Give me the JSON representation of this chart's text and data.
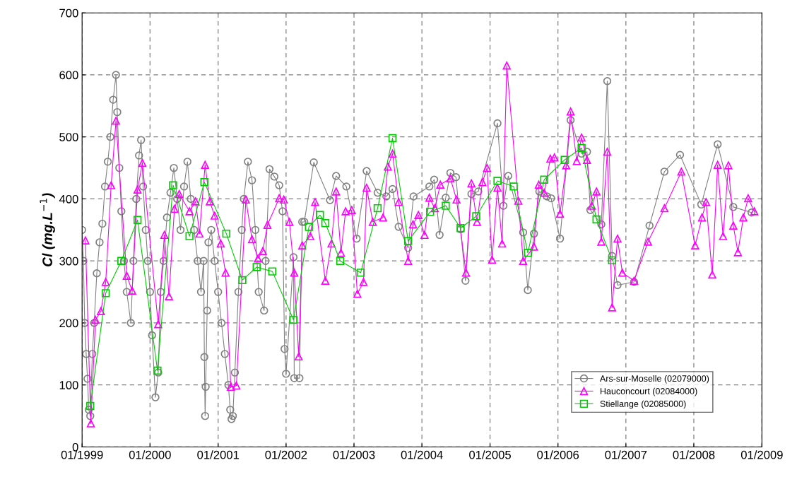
{
  "chart_data": {
    "type": "line",
    "ylabel": "Cl (mg.L$^{−1}$)",
    "xlim": [
      "1999-01-01",
      "2009-01-01"
    ],
    "ylim": [
      0,
      700
    ],
    "xticks": [
      {
        "value": "1999-01-01",
        "label": "01/1999"
      },
      {
        "value": "2000-01-01",
        "label": "01/2000"
      },
      {
        "value": "2001-01-01",
        "label": "01/2001"
      },
      {
        "value": "2002-01-01",
        "label": "01/2002"
      },
      {
        "value": "2003-01-01",
        "label": "01/2003"
      },
      {
        "value": "2004-01-01",
        "label": "01/2004"
      },
      {
        "value": "2005-01-01",
        "label": "01/2005"
      },
      {
        "value": "2006-01-01",
        "label": "01/2006"
      },
      {
        "value": "2007-01-01",
        "label": "01/2007"
      },
      {
        "value": "2008-01-01",
        "label": "01/2008"
      },
      {
        "value": "2009-01-01",
        "label": "01/2009"
      }
    ],
    "yticks": [
      0,
      100,
      200,
      300,
      400,
      500,
      600,
      700
    ],
    "grid": true,
    "legend": "bottom right",
    "line_style": "solid",
    "series": [
      {
        "name": "Ars-sur-Moselle (02079000)",
        "color": "#808080",
        "marker": "circle",
        "x": [
          "1999-01-01",
          "1999-01-08",
          "1999-01-15",
          "1999-01-23",
          "1999-01-30",
          "1999-02-06",
          "1999-02-14",
          "1999-02-25",
          "1999-03-07",
          "1999-03-21",
          "1999-04-05",
          "1999-04-20",
          "1999-05-04",
          "1999-05-19",
          "1999-06-02",
          "1999-06-17",
          "1999-07-02",
          "1999-07-09",
          "1999-07-20",
          "1999-07-31",
          "1999-08-14",
          "1999-08-29",
          "1999-09-20",
          "1999-10-04",
          "1999-10-19",
          "1999-11-03",
          "1999-11-14",
          "1999-11-25",
          "1999-12-09",
          "1999-12-20",
          "2000-01-01",
          "2000-01-12",
          "2000-01-30",
          "2000-02-14",
          "2000-02-28",
          "2000-03-14",
          "2000-04-01",
          "2000-04-20",
          "2000-05-08",
          "2000-05-26",
          "2000-06-13",
          "2000-07-02",
          "2000-07-20",
          "2000-08-07",
          "2000-08-25",
          "2000-09-13",
          "2000-10-01",
          "2000-10-15",
          "2000-10-19",
          "2000-10-23",
          "2000-10-26",
          "2000-11-03",
          "2000-11-10",
          "2000-11-25",
          "2000-12-13",
          "2001-01-01",
          "2001-01-19",
          "2001-02-06",
          "2001-02-25",
          "2001-03-07",
          "2001-03-14",
          "2001-03-21",
          "2001-04-01",
          "2001-04-20",
          "2001-05-08",
          "2001-05-19",
          "2001-06-10",
          "2001-07-02",
          "2001-07-20",
          "2001-08-07",
          "2001-09-05",
          "2001-09-13",
          "2001-10-04",
          "2001-10-30",
          "2001-11-25",
          "2001-12-13",
          "2001-12-24",
          "2002-01-01",
          "2002-02-10",
          "2002-02-14",
          "2002-03-14",
          "2002-03-29",
          "2002-04-09",
          "2002-05-30",
          "2002-08-25",
          "2002-09-27",
          "2002-11-21",
          "2003-01-15",
          "2003-03-10",
          "2003-05-08",
          "2003-06-24",
          "2003-07-27",
          "2003-08-29",
          "2003-10-19",
          "2003-11-17",
          "2004-02-10",
          "2004-03-07",
          "2004-04-05",
          "2004-05-08",
          "2004-06-02",
          "2004-07-02",
          "2004-07-27",
          "2004-08-22",
          "2004-09-23",
          "2004-10-30",
          "2005-02-10",
          "2005-03-14",
          "2005-04-09",
          "2005-06-28",
          "2005-07-23",
          "2005-08-25",
          "2005-09-23",
          "2005-11-03",
          "2005-11-25",
          "2006-01-12",
          "2006-03-10",
          "2006-05-08",
          "2006-06-06",
          "2006-06-24",
          "2006-08-22",
          "2006-09-23",
          "2006-10-19",
          "2006-11-17",
          "2007-02-14",
          "2007-05-08",
          "2007-07-27",
          "2007-10-19",
          "2008-02-10",
          "2008-05-08",
          "2008-07-31",
          "2008-11-06"
        ],
        "values": [
          350,
          300,
          200,
          150,
          110,
          60,
          50,
          150,
          200,
          280,
          330,
          360,
          420,
          460,
          500,
          560,
          600,
          540,
          450,
          380,
          300,
          250,
          200,
          300,
          400,
          470,
          495,
          420,
          350,
          300,
          250,
          180,
          80,
          120,
          250,
          300,
          370,
          410,
          450,
          400,
          350,
          420,
          460,
          400,
          350,
          300,
          250,
          300,
          145,
          50,
          97,
          220,
          330,
          350,
          300,
          250,
          200,
          150,
          100,
          60,
          45,
          50,
          120,
          250,
          350,
          400,
          460,
          430,
          350,
          250,
          220,
          300,
          448,
          436,
          422,
          380,
          158,
          118,
          306,
          111,
          111,
          363,
          363,
          459,
          398,
          437,
          420,
          336,
          445,
          410,
          404,
          416,
          355,
          321,
          404,
          420,
          431,
          342,
          402,
          442,
          435,
          351,
          268,
          408,
          412,
          522,
          389,
          437,
          346,
          253,
          344,
          412,
          404,
          401,
          336,
          527,
          473,
          476,
          382,
          359,
          590,
          308,
          261,
          266,
          357,
          444,
          471,
          391,
          488,
          387,
          378
        ]
      },
      {
        "name": "Hauconcourt (02084000)",
        "color": "#ff00ff",
        "marker": "triangle",
        "x": [
          "1999-01-19",
          "1999-02-17",
          "1999-03-14",
          "1999-04-12",
          "1999-05-08",
          "1999-06-06",
          "1999-07-02",
          "1999-08-29",
          "1999-09-27",
          "1999-10-26",
          "1999-11-21",
          "2000-02-14",
          "2000-03-18",
          "2000-04-12",
          "2000-05-11",
          "2000-06-06",
          "2000-07-31",
          "2000-09-02",
          "2000-09-23",
          "2000-10-23",
          "2000-11-17",
          "2000-12-13",
          "2001-01-15",
          "2001-02-10",
          "2001-03-10",
          "2001-04-09",
          "2001-05-30",
          "2001-07-02",
          "2001-08-03",
          "2001-08-29",
          "2001-09-23",
          "2001-11-25",
          "2001-12-20",
          "2002-01-19",
          "2002-02-14",
          "2002-03-10",
          "2002-03-29",
          "2002-05-11",
          "2002-06-06",
          "2002-07-31",
          "2002-09-02",
          "2002-09-27",
          "2002-10-23",
          "2002-11-17",
          "2002-12-20",
          "2003-01-19",
          "2003-02-21",
          "2003-03-10",
          "2003-04-12",
          "2003-06-06",
          "2003-07-02",
          "2003-07-27",
          "2003-08-29",
          "2003-10-19",
          "2003-11-14",
          "2003-12-13",
          "2004-01-15",
          "2004-02-10",
          "2004-03-10",
          "2004-04-09",
          "2004-06-02",
          "2004-07-05",
          "2004-08-25",
          "2004-09-23",
          "2004-10-23",
          "2004-11-21",
          "2004-12-16",
          "2005-01-12",
          "2005-02-10",
          "2005-03-07",
          "2005-04-01",
          "2005-06-02",
          "2005-06-28",
          "2005-08-25",
          "2005-09-20",
          "2005-10-19",
          "2005-11-21",
          "2005-12-13",
          "2006-01-12",
          "2006-02-14",
          "2006-03-10",
          "2006-04-12",
          "2006-05-08",
          "2006-06-06",
          "2006-07-02",
          "2006-07-27",
          "2006-08-22",
          "2006-09-23",
          "2006-10-19",
          "2006-11-17",
          "2006-12-13",
          "2007-02-14",
          "2007-04-30",
          "2007-07-27",
          "2007-10-26",
          "2008-01-08",
          "2008-02-14",
          "2008-03-07",
          "2008-04-09",
          "2008-05-08",
          "2008-06-06",
          "2008-07-05",
          "2008-07-31",
          "2008-08-25",
          "2008-09-23",
          "2008-10-19",
          "2008-11-21"
        ],
        "values": [
          333,
          38,
          205,
          219,
          266,
          422,
          526,
          276,
          252,
          415,
          458,
          198,
          342,
          243,
          384,
          408,
          380,
          396,
          344,
          455,
          396,
          373,
          328,
          281,
          97,
          99,
          399,
          335,
          304,
          316,
          358,
          401,
          399,
          363,
          281,
          146,
          325,
          340,
          395,
          268,
          328,
          412,
          313,
          380,
          382,
          247,
          266,
          418,
          363,
          370,
          452,
          473,
          395,
          300,
          359,
          374,
          342,
          402,
          385,
          423,
          433,
          399,
          281,
          425,
          363,
          427,
          450,
          302,
          418,
          328,
          615,
          397,
          300,
          323,
          423,
          410,
          465,
          467,
          376,
          454,
          541,
          461,
          499,
          463,
          389,
          412,
          331,
          476,
          225,
          336,
          281,
          268,
          331,
          385,
          444,
          325,
          370,
          395,
          278,
          455,
          340,
          454,
          357,
          314,
          370,
          401,
          380
        ]
      },
      {
        "name": "Stiellange (02085000)",
        "color": "#00cc00",
        "marker": "square",
        "x": [
          "1999-02-14",
          "1999-05-08",
          "1999-07-31",
          "1999-10-26",
          "2000-02-10",
          "2000-05-04",
          "2000-07-31",
          "2000-10-19",
          "2001-02-14",
          "2001-05-11",
          "2001-07-27",
          "2001-10-19",
          "2002-02-10",
          "2002-05-04",
          "2002-07-02",
          "2002-07-31",
          "2002-10-19",
          "2003-02-06",
          "2003-05-08",
          "2003-07-27",
          "2003-10-19",
          "2004-02-14",
          "2004-05-08",
          "2004-07-27",
          "2004-10-19",
          "2005-02-10",
          "2005-05-08",
          "2005-07-23",
          "2005-10-19",
          "2006-02-06",
          "2006-05-08",
          "2006-07-27",
          "2006-10-19"
        ],
        "values": [
          66,
          248,
          300,
          366,
          123,
          422,
          340,
          427,
          344,
          269,
          290,
          283,
          205,
          355,
          374,
          361,
          300,
          281,
          385,
          498,
          332,
          379,
          389,
          353,
          372,
          429,
          420,
          313,
          431,
          463,
          482,
          367,
          301
        ]
      }
    ]
  }
}
